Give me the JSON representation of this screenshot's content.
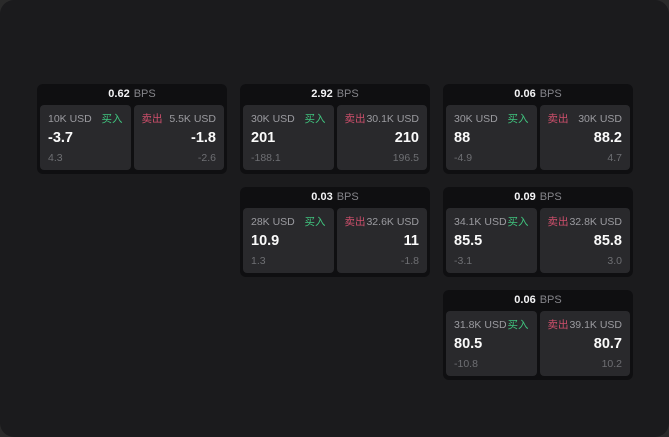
{
  "page": {
    "background_outer": "#2a2a2a",
    "background": "#1b1b1d"
  },
  "labels": {
    "buy": "买入",
    "sell": "卖出",
    "bps_suffix": "BPS"
  },
  "colors": {
    "buy": "#40c57f",
    "sell": "#cf4f6c",
    "card_header_bg": "#0f0f11",
    "panel_bg": "#29292c",
    "price_text": "#fafafa",
    "muted_text": "#9b9ba0",
    "delta_text": "#6e6f73"
  },
  "cards": [
    {
      "row": 1,
      "col": 1,
      "bps": "0.62",
      "buy": {
        "notional": "10K USD",
        "price": "-3.7",
        "delta": "4.3"
      },
      "sell": {
        "notional": "5.5K USD",
        "price": "-1.8",
        "delta": "-2.6"
      }
    },
    {
      "row": 1,
      "col": 2,
      "bps": "2.92",
      "buy": {
        "notional": "30K USD",
        "price": "201",
        "delta": "-188.1"
      },
      "sell": {
        "notional": "30.1K USD",
        "price": "210",
        "delta": "196.5"
      }
    },
    {
      "row": 1,
      "col": 3,
      "bps": "0.06",
      "buy": {
        "notional": "30K USD",
        "price": "88",
        "delta": "-4.9"
      },
      "sell": {
        "notional": "30K USD",
        "price": "88.2",
        "delta": "4.7"
      }
    },
    {
      "row": 2,
      "col": 2,
      "bps": "0.03",
      "buy": {
        "notional": "28K USD",
        "price": "10.9",
        "delta": "1.3"
      },
      "sell": {
        "notional": "32.6K USD",
        "price": "11",
        "delta": "-1.8"
      }
    },
    {
      "row": 2,
      "col": 3,
      "bps": "0.09",
      "buy": {
        "notional": "34.1K USD",
        "price": "85.5",
        "delta": "-3.1"
      },
      "sell": {
        "notional": "32.8K USD",
        "price": "85.8",
        "delta": "3.0"
      }
    },
    {
      "row": 3,
      "col": 3,
      "bps": "0.06",
      "buy": {
        "notional": "31.8K USD",
        "price": "80.5",
        "delta": "-10.8"
      },
      "sell": {
        "notional": "39.1K USD",
        "price": "80.7",
        "delta": "10.2"
      }
    }
  ]
}
